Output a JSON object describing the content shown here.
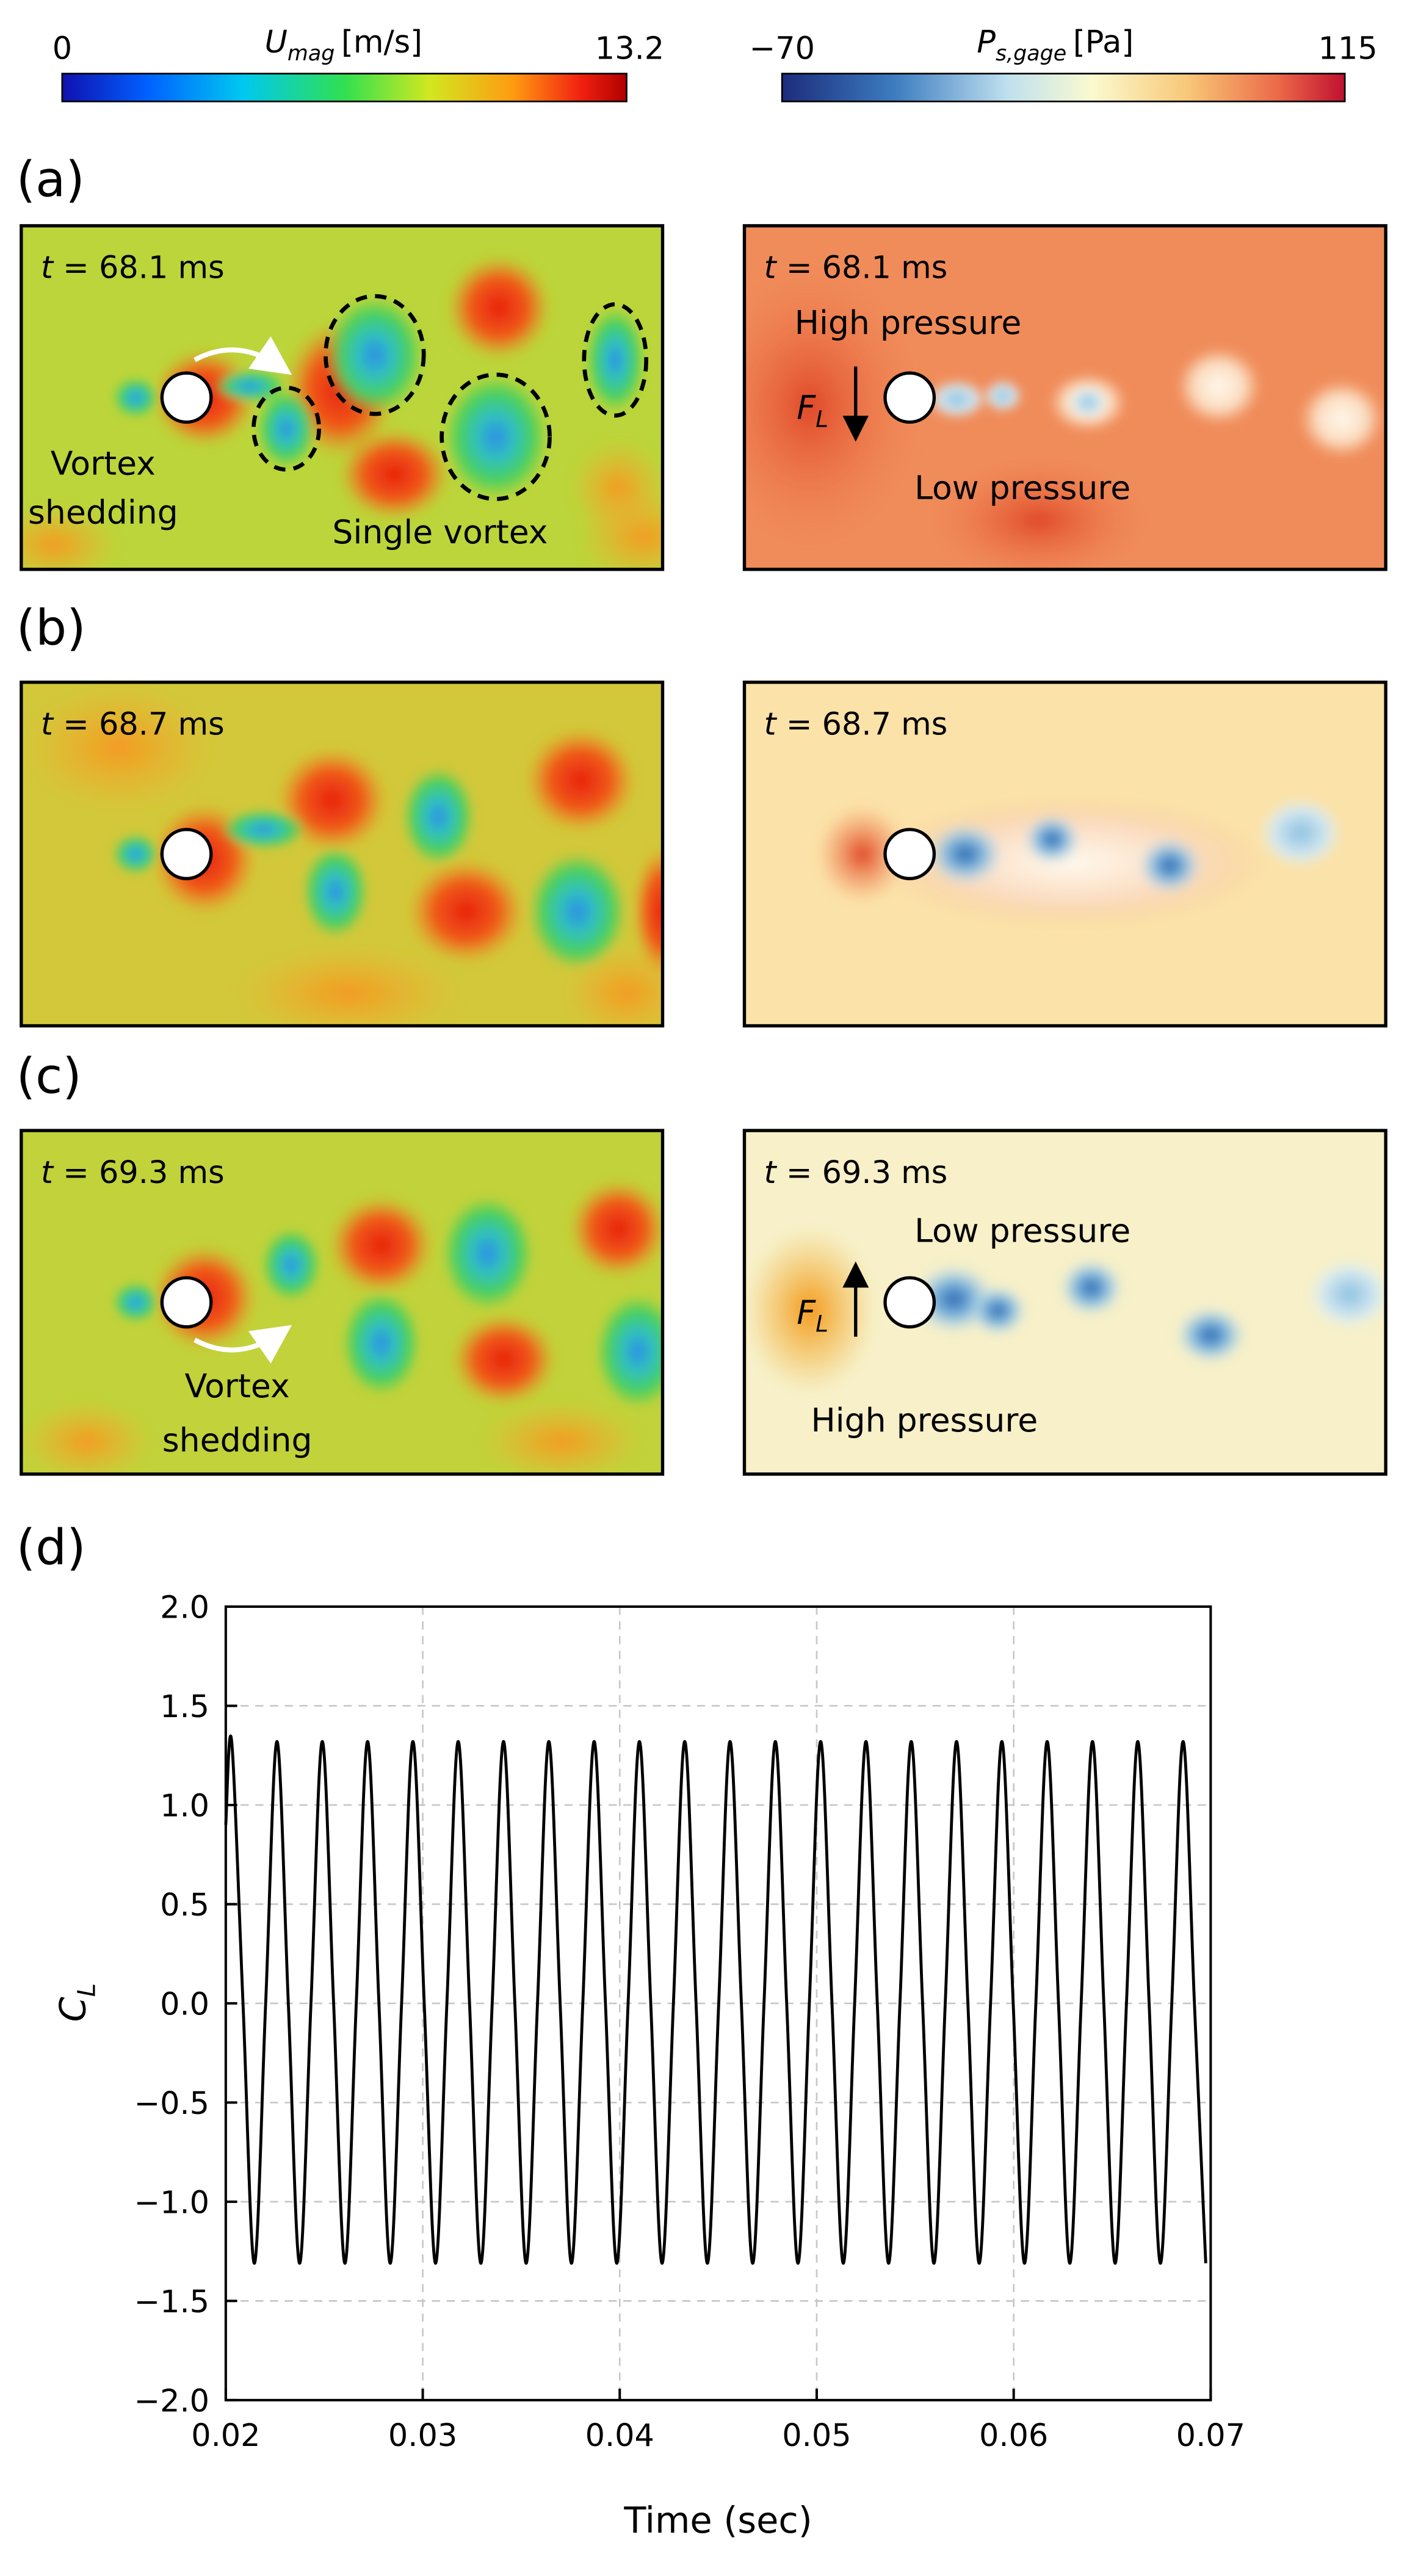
{
  "colorbars": [
    {
      "symbol": "U",
      "subscript": "mag",
      "unit": "[m/s]",
      "min": 0,
      "max": 13.2
    },
    {
      "symbol": "P",
      "subscript": "s,gage",
      "unit": "[Pa]",
      "min": {
        "value": -70,
        "label": "−70"
      },
      "max": 115
    }
  ],
  "panels": [
    {
      "label": "(a)",
      "velocity": {
        "time_symbol": "t",
        "time": "= 68.1 ms",
        "notes": [
          "Vortex",
          "shedding",
          "Single vortex"
        ]
      },
      "pressure": {
        "time_symbol": "t",
        "time": "= 68.1 ms",
        "notes": [
          "High pressure",
          "Low pressure"
        ],
        "force": {
          "symbol": "F",
          "subscript": "L"
        }
      }
    },
    {
      "label": "(b)",
      "velocity": {
        "time_symbol": "t",
        "time": "= 68.7 ms"
      },
      "pressure": {
        "time_symbol": "t",
        "time": "= 68.7 ms"
      }
    },
    {
      "label": "(c)",
      "velocity": {
        "time_symbol": "t",
        "time": "= 69.3 ms",
        "notes": [
          "Vortex",
          "shedding"
        ]
      },
      "pressure": {
        "time_symbol": "t",
        "time": "= 69.3 ms",
        "notes": [
          "Low pressure",
          "High pressure"
        ],
        "force": {
          "symbol": "F",
          "subscript": "L"
        }
      }
    }
  ],
  "chart_data": {
    "type": "line",
    "panel_label": "(d)",
    "xlabel": "Time (sec)",
    "ylabel": {
      "symbol": "C",
      "subscript": "L"
    },
    "color": "#000000",
    "grid": true,
    "xlim": [
      0.02,
      0.07
    ],
    "xticks": [
      0.02,
      0.03,
      0.04,
      0.05,
      0.06,
      0.07
    ],
    "ylim": [
      -2,
      2
    ],
    "yticks": [
      {
        "value": -2,
        "label": "−2.0"
      },
      {
        "value": -1.5,
        "label": "−1.5"
      },
      {
        "value": -1,
        "label": "−1.0"
      },
      {
        "value": -0.5,
        "label": "−0.5"
      },
      {
        "value": 0,
        "label": "0.0"
      },
      {
        "value": 0.5,
        "label": "0.5"
      },
      {
        "value": 1,
        "label": "1.0"
      },
      {
        "value": 1.5,
        "label": "1.5"
      },
      {
        "value": 2,
        "label": "2.0"
      }
    ],
    "x": [
      0.02,
      0.0203,
      0.020875,
      0.02145,
      0.022025,
      0.0226,
      0.023175,
      0.02375,
      0.024325,
      0.0249,
      0.025475,
      0.02605,
      0.026625,
      0.0272,
      0.027775,
      0.02835,
      0.028925,
      0.0295,
      0.030075,
      0.03065,
      0.031225,
      0.0318,
      0.032375,
      0.03295,
      0.033525,
      0.0341,
      0.034675,
      0.03525,
      0.035825,
      0.0364,
      0.036975,
      0.03755,
      0.038125,
      0.0387,
      0.039275,
      0.03985,
      0.040425,
      0.041,
      0.041575,
      0.04215,
      0.042725,
      0.0433,
      0.043875,
      0.04445,
      0.045025,
      0.0456,
      0.046175,
      0.04675,
      0.047325,
      0.0479,
      0.048475,
      0.04905,
      0.049625,
      0.0502,
      0.050775,
      0.05135,
      0.051925,
      0.0525,
      0.053075,
      0.05365,
      0.054225,
      0.0548,
      0.055375,
      0.05595,
      0.056525,
      0.0571,
      0.057675,
      0.05825,
      0.058825,
      0.0594,
      0.059975,
      0.06055,
      0.061125,
      0.0617,
      0.062275,
      0.06285,
      0.063425,
      0.064,
      0.064575,
      0.06515,
      0.065725,
      0.0663,
      0.066875,
      0.06745,
      0.068025,
      0.0686,
      0.069175,
      0.06975
    ],
    "values": [
      0.9,
      1.32,
      0,
      -1.31,
      0,
      1.32,
      0,
      -1.31,
      0,
      1.32,
      0,
      -1.31,
      0,
      1.32,
      0,
      -1.31,
      0,
      1.32,
      0,
      -1.31,
      0,
      1.32,
      0,
      -1.31,
      0,
      1.32,
      0,
      -1.31,
      0,
      1.32,
      0,
      -1.31,
      0,
      1.32,
      0,
      -1.31,
      0,
      1.32,
      0,
      -1.31,
      0,
      1.32,
      0,
      -1.31,
      0,
      1.32,
      0,
      -1.31,
      0,
      1.32,
      0,
      -1.31,
      0,
      1.32,
      0,
      -1.31,
      0,
      1.32,
      0,
      -1.31,
      0,
      1.32,
      0,
      -1.31,
      0,
      1.32,
      0,
      -1.31,
      0,
      1.32,
      0,
      -1.31,
      0,
      1.32,
      0,
      -1.31,
      0,
      1.32,
      0,
      -1.31,
      0,
      1.32,
      0,
      -1.31,
      0,
      1.32,
      0,
      -1.31
    ]
  }
}
